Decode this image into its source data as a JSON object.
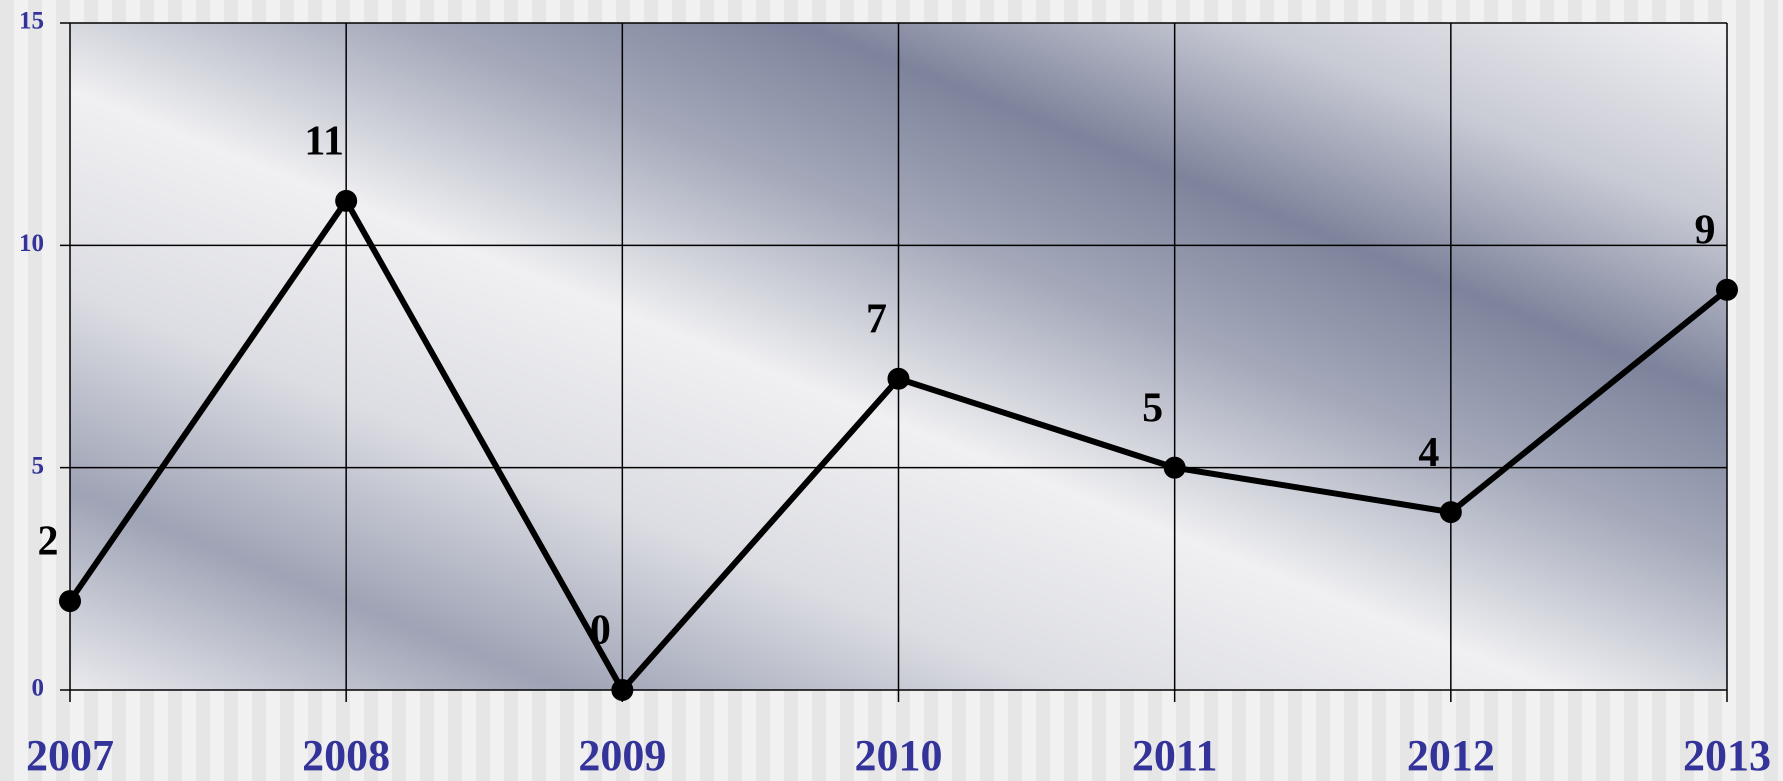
{
  "chart_data": {
    "type": "line",
    "categories": [
      "2007",
      "2008",
      "2009",
      "2010",
      "2011",
      "2012",
      "2013"
    ],
    "series": [
      {
        "color": "#000000",
        "values": [
          2,
          11,
          0,
          7,
          5,
          4,
          9
        ]
      }
    ],
    "ylim": [
      0,
      15
    ],
    "yticks": [
      0,
      5,
      10,
      15
    ],
    "grid": true
  }
}
